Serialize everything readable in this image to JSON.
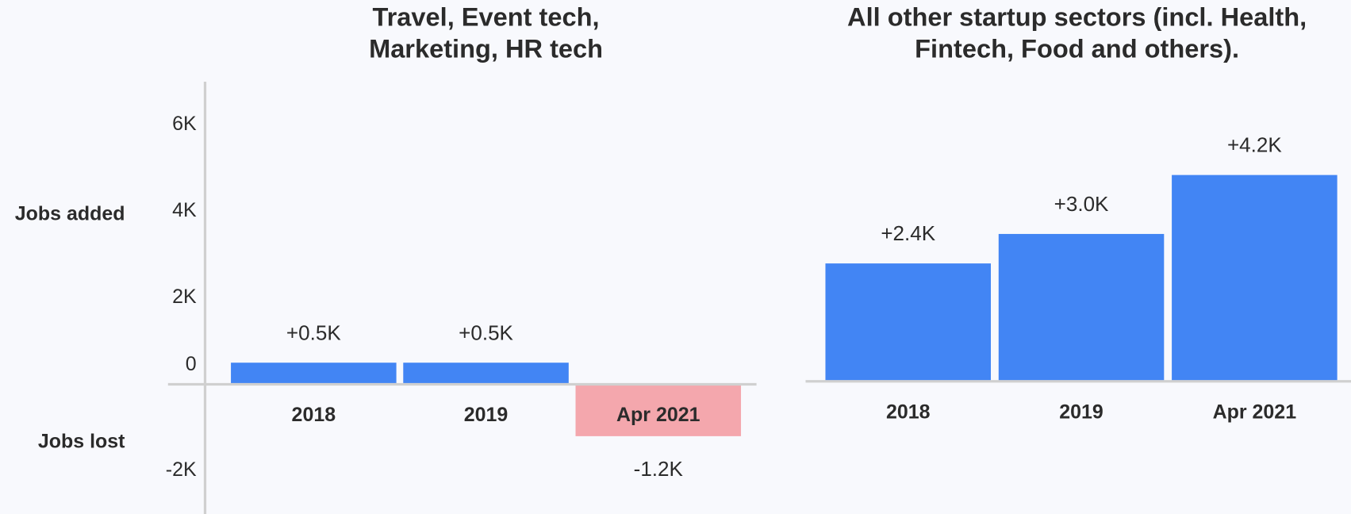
{
  "chart_data": [
    {
      "type": "bar",
      "title": [
        "Travel, Event tech,",
        "Marketing, HR tech"
      ],
      "annotations": [
        "Jobs added",
        "Jobs lost"
      ],
      "categories": [
        "2018",
        "2019",
        "Apr 2021"
      ],
      "values": [
        500,
        500,
        -1200
      ],
      "value_labels": [
        "+0.5K",
        "+0.5K",
        "-1.2K"
      ],
      "colors": [
        "#4285f4",
        "#4285f4",
        "#f4a7ad"
      ],
      "ylim": [
        -3000,
        7000
      ],
      "yticks": [
        {
          "value": 6000,
          "label": "6K"
        },
        {
          "value": 4000,
          "label": "4K"
        },
        {
          "value": 2000,
          "label": "2K"
        },
        0,
        {
          "value": -2000,
          "label": "-2K"
        }
      ]
    },
    {
      "type": "bar",
      "title": [
        "All other startup sectors (incl. Health,",
        "Fintech, Food and others)."
      ],
      "categories": [
        "2018",
        "2019",
        "Apr 2021"
      ],
      "values": [
        2400,
        3000,
        4200
      ],
      "value_labels": [
        "+2.4K",
        "+3.0K",
        "+4.2K"
      ],
      "colors": [
        "#4285f4",
        "#4285f4",
        "#4285f4"
      ],
      "ylim": [
        -2700,
        6100
      ]
    }
  ]
}
